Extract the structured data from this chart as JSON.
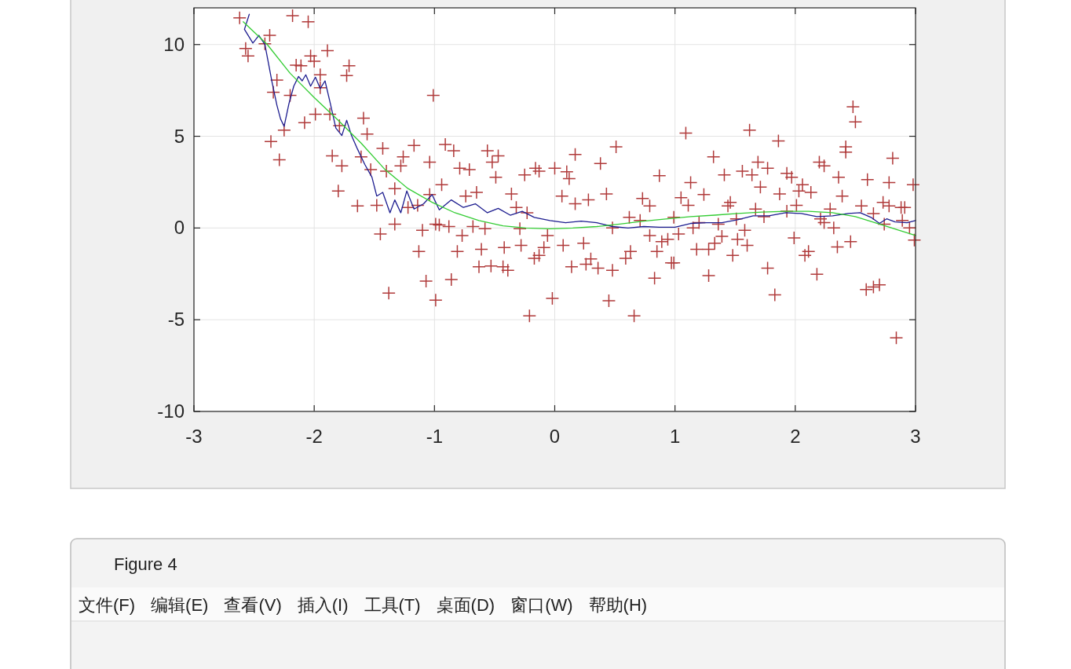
{
  "chart_data": {
    "type": "scatter",
    "xlim": [
      -3,
      3
    ],
    "ylim": [
      -10,
      12
    ],
    "xticks": [
      -3,
      -2,
      -1,
      0,
      1,
      2,
      3
    ],
    "yticks": [
      -10,
      -5,
      0,
      5,
      10
    ],
    "grid": true,
    "annotations": [
      "Figure 4",
      "文件(F)",
      "编辑(E)",
      "查看(V)",
      "插入(I)",
      "工具(T)",
      "桌面(D)",
      "窗口(W)",
      "帮助(H)"
    ],
    "series": [
      {
        "marker": "cross",
        "color": "#b03a3a",
        "x": [
          -2.62,
          -2.18,
          -2.05,
          -2.57,
          -2.55,
          -2.41,
          -2.37,
          -1.89,
          -1.71,
          -1.73,
          -2.03,
          -2.0,
          -2.15,
          -2.11,
          -1.95,
          -2.31,
          -2.34,
          -2.2,
          -1.95,
          -1.87,
          -1.99,
          -2.08,
          -2.25,
          -2.36,
          -2.29,
          -1.79,
          -1.59,
          -1.56,
          -1.85,
          -1.77,
          -1.61,
          -1.43,
          -1.17,
          -1.26,
          -1.28,
          -1.04,
          -1.4,
          -1.53,
          -1.8,
          -1.33,
          -1.64,
          -1.48,
          -1.22,
          -1.14,
          -1.04,
          -1.33,
          -1.45,
          -1.1,
          -0.99,
          -1.01,
          -1.13,
          -1.07,
          -1.38,
          -0.99,
          -0.91,
          -0.84,
          -0.56,
          -0.47,
          -0.52,
          -0.79,
          -0.71,
          -0.49,
          -0.25,
          -0.16,
          -0.13,
          0.0,
          0.1,
          0.12,
          0.17,
          0.38,
          0.51,
          0.87,
          -0.94,
          -0.74,
          -0.65,
          -0.36,
          -0.32,
          -0.23,
          0.06,
          0.17,
          0.28,
          0.43,
          0.73,
          0.79,
          0.62,
          0.71,
          -0.96,
          -0.88,
          -0.68,
          -0.58,
          -0.29,
          -0.06,
          -0.77,
          0.48,
          0.79,
          0.89,
          0.94,
          -0.81,
          -0.61,
          -0.42,
          -0.28,
          -0.09,
          0.07,
          0.24,
          0.63,
          0.59,
          0.85,
          -0.13,
          -0.17,
          0.3,
          -0.63,
          -0.53,
          -0.43,
          -0.39,
          0.14,
          0.26,
          0.36,
          0.48,
          0.97,
          -0.86,
          0.83,
          -0.02,
          0.45,
          -0.21,
          0.66,
          2.48,
          2.5,
          1.09,
          1.62,
          1.86,
          2.42,
          2.42,
          1.32,
          2.81,
          2.2,
          2.24,
          1.69,
          1.77,
          1.56,
          1.64,
          1.41,
          1.93,
          1.97,
          2.36,
          2.6,
          2.78,
          2.98,
          1.13,
          1.71,
          2.06,
          2.03,
          2.13,
          1.87,
          1.24,
          2.39,
          1.05,
          1.11,
          1.46,
          1.44,
          2.01,
          2.29,
          2.55,
          2.73,
          2.78,
          2.88,
          2.91,
          1.67,
          1.93,
          2.65,
          0.99,
          1.51,
          1.74,
          1.2,
          1.36,
          2.21,
          2.24,
          2.89,
          2.74,
          2.95,
          2.32,
          1.15,
          1.03,
          1.58,
          1.39,
          1.52,
          1.99,
          2.99,
          1.18,
          1.28,
          1.33,
          1.6,
          2.35,
          2.46,
          2.11,
          2.08,
          1.48,
          0.99,
          1.77,
          2.18,
          1.28,
          1.83,
          2.59,
          2.65,
          2.7,
          2.84
        ],
        "values": [
          11.45,
          11.57,
          11.24,
          9.79,
          9.38,
          10.04,
          10.5,
          9.67,
          8.84,
          8.31,
          9.38,
          9.09,
          8.88,
          8.84,
          8.35,
          8.06,
          7.4,
          7.23,
          7.64,
          6.2,
          6.2,
          5.74,
          5.33,
          4.71,
          3.72,
          5.58,
          5.99,
          5.12,
          3.93,
          3.39,
          3.88,
          4.34,
          4.5,
          3.88,
          3.39,
          3.59,
          3.1,
          3.18,
          2.02,
          2.15,
          1.2,
          1.24,
          1.12,
          1.24,
          1.82,
          0.21,
          -0.33,
          -0.12,
          0.21,
          7.23,
          -1.28,
          -2.89,
          -3.55,
          -3.93,
          4.55,
          4.21,
          4.21,
          3.93,
          3.59,
          3.26,
          3.18,
          2.77,
          2.89,
          3.26,
          3.1,
          3.26,
          3.06,
          2.69,
          4.01,
          3.51,
          4.42,
          2.85,
          2.36,
          1.74,
          1.94,
          1.86,
          1.12,
          0.83,
          1.74,
          1.32,
          1.53,
          1.86,
          1.61,
          1.2,
          0.58,
          0.41,
          0.17,
          0.08,
          0.08,
          -0.04,
          -0.04,
          -0.41,
          -0.41,
          0,
          -0.41,
          -0.74,
          -0.62,
          -1.28,
          -1.16,
          -1.07,
          -0.95,
          -1.07,
          -0.95,
          -0.83,
          -1.28,
          -1.65,
          -1.28,
          -1.49,
          -1.65,
          -1.69,
          -2.11,
          -2.07,
          -2.11,
          -2.31,
          -2.11,
          -1.98,
          -2.19,
          -2.31,
          -1.9,
          -2.81,
          -2.73,
          -3.84,
          -3.97,
          -4.79,
          -4.79,
          6.61,
          5.78,
          5.17,
          5.33,
          4.75,
          4.42,
          4.13,
          3.88,
          3.8,
          3.59,
          3.39,
          3.59,
          3.26,
          3.1,
          2.89,
          2.89,
          2.98,
          2.77,
          2.77,
          2.64,
          2.48,
          2.36,
          2.48,
          2.23,
          2.36,
          2.02,
          1.94,
          1.86,
          1.82,
          1.74,
          1.65,
          1.24,
          1.4,
          1.2,
          1.24,
          1.03,
          1.2,
          1.4,
          1.2,
          1.12,
          1.12,
          1.03,
          0.91,
          0.79,
          0.58,
          0.5,
          0.62,
          0.29,
          0.21,
          0.5,
          0.29,
          0.41,
          0.21,
          0,
          0,
          0,
          -0.33,
          -0.12,
          -0.45,
          -0.62,
          -0.54,
          -0.66,
          -1.16,
          -1.16,
          -0.83,
          -0.95,
          -1.03,
          -0.74,
          -1.28,
          -1.49,
          -1.49,
          -1.9,
          -2.19,
          -2.52,
          -2.6,
          -3.64,
          -3.35,
          -3.22,
          -3.1,
          -5.99
        ]
      },
      {
        "type": "line",
        "color": "#1c1c8f",
        "x": [
          -2.54,
          -2.58,
          -2.51,
          -2.46,
          -2.41,
          -2.35,
          -2.31,
          -2.28,
          -2.25,
          -2.21,
          -2.17,
          -2.13,
          -2.1,
          -2.07,
          -2.03,
          -1.99,
          -1.95,
          -1.91,
          -1.87,
          -1.82,
          -1.77,
          -1.73,
          -1.69,
          -1.64,
          -1.58,
          -1.52,
          -1.48,
          -1.43,
          -1.37,
          -1.33,
          -1.28,
          -1.23,
          -1.17,
          -1.09,
          -1.02,
          -0.96,
          -0.86,
          -0.76,
          -0.66,
          -0.56,
          -0.47,
          -0.37,
          -0.27,
          -0.17,
          -0.04,
          0.09,
          0.22,
          0.35,
          0.48,
          0.61,
          0.74,
          0.87,
          1.0,
          1.13,
          1.26,
          1.39,
          1.52,
          1.65,
          1.78,
          1.92,
          2.05,
          2.18,
          2.31,
          2.44,
          2.54,
          2.63,
          2.7,
          2.76,
          2.83,
          2.93,
          3.0
        ],
        "values": [
          11.65,
          10.83,
          10.08,
          10.5,
          10.0,
          7.93,
          6.69,
          5.95,
          5.54,
          6.78,
          7.73,
          8.26,
          8.02,
          8.35,
          7.73,
          8.22,
          7.6,
          8.02,
          6.9,
          5.45,
          5.04,
          5.87,
          5.04,
          4.3,
          3.47,
          2.77,
          1.74,
          1.94,
          0.83,
          1.53,
          0.83,
          2.02,
          1.03,
          1.32,
          1.82,
          0.99,
          1.53,
          1.12,
          1.32,
          0.83,
          1.07,
          0.7,
          0.91,
          0.58,
          0.41,
          0.29,
          0.37,
          0.29,
          0.08,
          0,
          0.08,
          0.04,
          0.04,
          0.25,
          0.29,
          0.29,
          0.45,
          0.66,
          0.66,
          0.83,
          0.79,
          0.62,
          0.66,
          0.79,
          0.83,
          0.58,
          0.25,
          0.5,
          0.33,
          0.29,
          0.41
        ]
      },
      {
        "type": "line",
        "color": "#33cc33",
        "x": [
          -2.59,
          -2.39,
          -2.2,
          -2.0,
          -1.8,
          -1.61,
          -1.41,
          -1.22,
          -1.02,
          -0.83,
          -0.63,
          -0.43,
          -0.24,
          -0.04,
          0.15,
          0.35,
          0.54,
          0.74,
          0.94,
          1.13,
          1.33,
          1.52,
          1.72,
          1.92,
          2.11,
          2.31,
          2.5,
          2.7,
          2.86,
          3.0
        ],
        "values": [
          11.24,
          10.0,
          8.43,
          7.11,
          5.87,
          4.63,
          3.18,
          2.15,
          1.4,
          0.83,
          0.41,
          0.12,
          0,
          -0.04,
          0,
          0.08,
          0.21,
          0.37,
          0.5,
          0.62,
          0.7,
          0.79,
          0.87,
          0.91,
          0.91,
          0.83,
          0.62,
          0.21,
          -0.12,
          -0.41
        ]
      }
    ]
  }
}
